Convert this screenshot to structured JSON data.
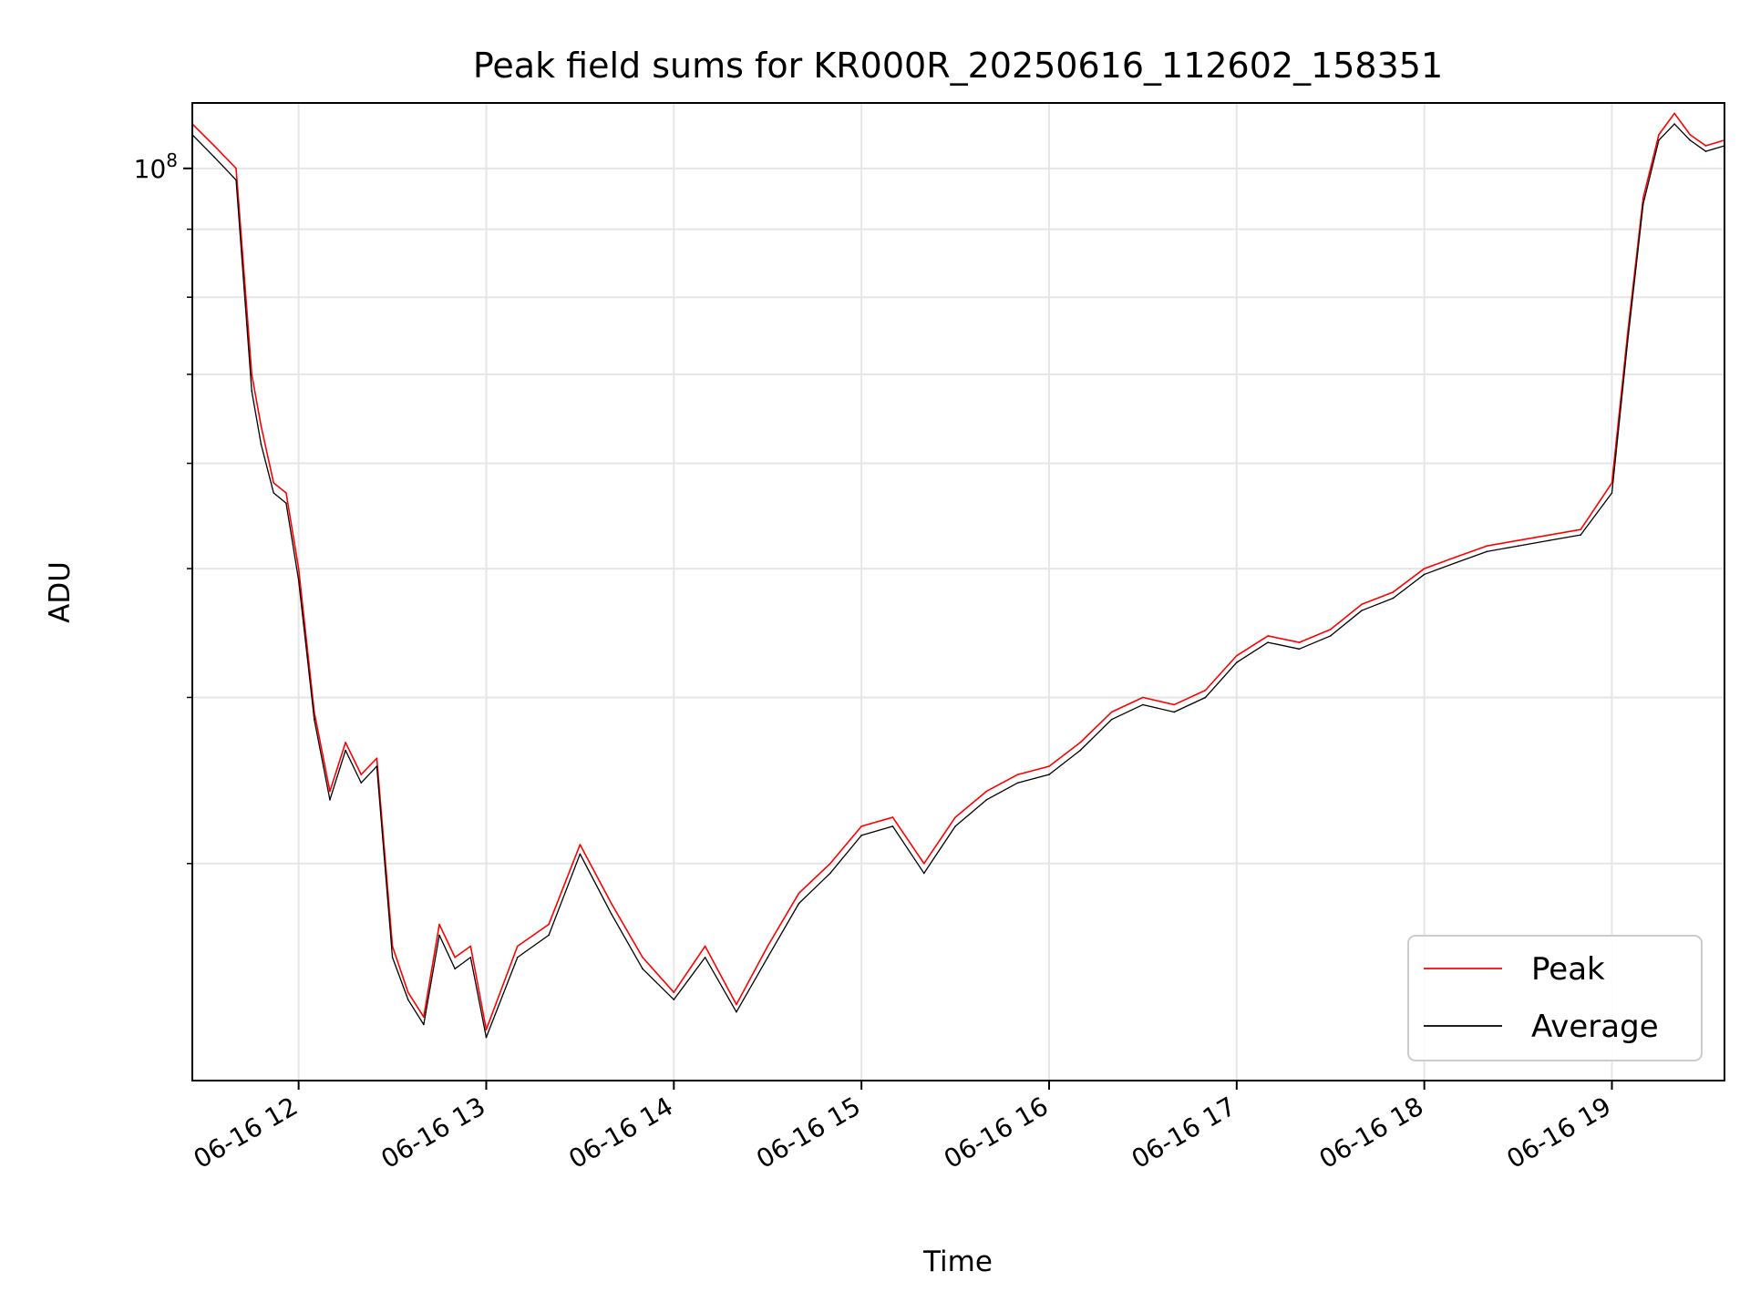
{
  "chart_data": {
    "type": "line",
    "title": "Peak field sums for KR000R_20250616_112602_158351",
    "xlabel": "Time",
    "ylabel": "ADU",
    "y_scale": "log",
    "ylim": [
      20600000,
      112000000
    ],
    "xlim": [
      "06-16 11:26",
      "06-16 19:36"
    ],
    "grid": true,
    "legend_position": "lower-right",
    "x_tick_labels": [
      "06-16 12",
      "06-16 13",
      "06-16 14",
      "06-16 15",
      "06-16 16",
      "06-16 17",
      "06-16 18",
      "06-16 19"
    ],
    "y_major_tick": {
      "value": 100000000,
      "label_base": "10",
      "label_exponent": "8"
    },
    "y_minor_tick_values": [
      30000000,
      40000000,
      50000000,
      60000000,
      70000000,
      80000000,
      90000000
    ],
    "x": [
      "06-16 11:26",
      "06-16 11:33",
      "06-16 11:40",
      "06-16 11:45",
      "06-16 11:48",
      "06-16 11:52",
      "06-16 11:56",
      "06-16 12:00",
      "06-16 12:05",
      "06-16 12:10",
      "06-16 12:15",
      "06-16 12:20",
      "06-16 12:25",
      "06-16 12:30",
      "06-16 12:35",
      "06-16 12:40",
      "06-16 12:45",
      "06-16 12:50",
      "06-16 12:55",
      "06-16 13:00",
      "06-16 13:10",
      "06-16 13:20",
      "06-16 13:30",
      "06-16 13:40",
      "06-16 13:50",
      "06-16 14:00",
      "06-16 14:10",
      "06-16 14:20",
      "06-16 14:30",
      "06-16 14:40",
      "06-16 14:50",
      "06-16 15:00",
      "06-16 15:10",
      "06-16 15:20",
      "06-16 15:30",
      "06-16 15:40",
      "06-16 15:50",
      "06-16 16:00",
      "06-16 16:10",
      "06-16 16:20",
      "06-16 16:30",
      "06-16 16:40",
      "06-16 16:50",
      "06-16 17:00",
      "06-16 17:10",
      "06-16 17:20",
      "06-16 17:30",
      "06-16 17:40",
      "06-16 17:50",
      "06-16 18:00",
      "06-16 18:10",
      "06-16 18:20",
      "06-16 18:30",
      "06-16 18:40",
      "06-16 18:50",
      "06-16 19:00",
      "06-16 19:05",
      "06-16 19:10",
      "06-16 19:15",
      "06-16 19:20",
      "06-16 19:25",
      "06-16 19:30",
      "06-16 19:36"
    ],
    "series": [
      {
        "name": "Peak",
        "color": "#ff0000",
        "values": [
          108000000,
          104000000,
          100000000,
          70000000,
          64000000,
          58000000,
          57000000,
          50000000,
          39000000,
          34000000,
          37000000,
          35000000,
          36000000,
          26000000,
          24000000,
          23000000,
          27000000,
          25500000,
          26000000,
          22500000,
          26000000,
          27000000,
          31000000,
          28000000,
          25500000,
          24000000,
          26000000,
          23500000,
          26000000,
          28500000,
          30000000,
          32000000,
          32500000,
          30000000,
          32500000,
          34000000,
          35000000,
          35500000,
          37000000,
          39000000,
          40000000,
          39500000,
          40500000,
          43000000,
          44500000,
          44000000,
          45000000,
          47000000,
          48000000,
          50000000,
          51000000,
          52000000,
          52500000,
          53000000,
          53500000,
          58000000,
          75000000,
          95000000,
          106000000,
          110000000,
          106000000,
          104000000,
          105000000
        ]
      },
      {
        "name": "Average",
        "color": "#000000",
        "values": [
          106000000,
          102000000,
          98000000,
          68000000,
          62000000,
          57000000,
          56000000,
          49000000,
          38500000,
          33500000,
          36500000,
          34500000,
          35500000,
          25500000,
          23700000,
          22700000,
          26500000,
          25000000,
          25500000,
          22200000,
          25500000,
          26500000,
          30500000,
          27500000,
          25000000,
          23700000,
          25500000,
          23200000,
          25500000,
          28000000,
          29500000,
          31500000,
          32000000,
          29500000,
          32000000,
          33500000,
          34500000,
          35000000,
          36500000,
          38500000,
          39500000,
          39000000,
          40000000,
          42500000,
          44000000,
          43500000,
          44500000,
          46500000,
          47500000,
          49500000,
          50500000,
          51500000,
          52000000,
          52500000,
          53000000,
          57000000,
          74000000,
          94000000,
          105000000,
          108000000,
          105000000,
          103000000,
          104000000
        ]
      }
    ]
  }
}
